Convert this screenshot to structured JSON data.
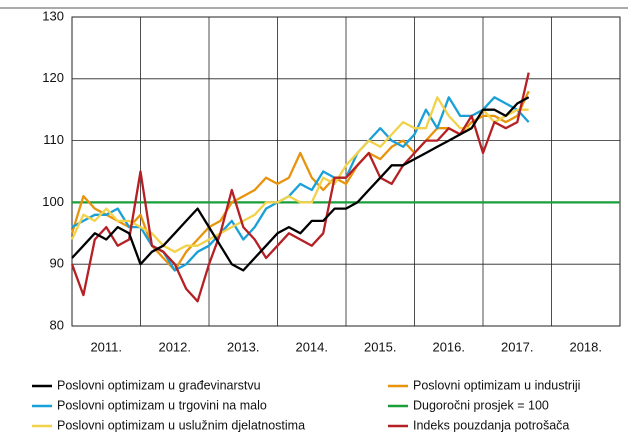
{
  "chart_data": {
    "type": "line",
    "xlim": [
      2011,
      2019
    ],
    "xticks": [
      {
        "value": 2011,
        "label": "2011."
      },
      {
        "value": 2012,
        "label": "2012."
      },
      {
        "value": 2013,
        "label": "2013."
      },
      {
        "value": 2014,
        "label": "2014."
      },
      {
        "value": 2015,
        "label": "2015."
      },
      {
        "value": 2016,
        "label": "2016."
      },
      {
        "value": 2017,
        "label": "2017."
      },
      {
        "value": 2018,
        "label": "2018."
      }
    ],
    "ylim": [
      80,
      130
    ],
    "yticks": [
      80,
      90,
      100,
      110,
      120,
      130
    ],
    "grid": true,
    "x": [
      2011.0,
      2011.167,
      2011.333,
      2011.5,
      2011.667,
      2011.833,
      2012.0,
      2012.167,
      2012.333,
      2012.5,
      2012.667,
      2012.833,
      2013.0,
      2013.167,
      2013.333,
      2013.5,
      2013.667,
      2013.833,
      2014.0,
      2014.167,
      2014.333,
      2014.5,
      2014.667,
      2014.833,
      2015.0,
      2015.167,
      2015.333,
      2015.5,
      2015.667,
      2015.833,
      2016.0,
      2016.167,
      2016.333,
      2016.5,
      2016.667,
      2016.833,
      2017.0,
      2017.167,
      2017.333,
      2017.5,
      2017.667
    ],
    "series": [
      {
        "name": "Poslovni optimizam u građevinarstvu",
        "color": "#000000",
        "values": [
          91,
          93,
          95,
          94,
          96,
          95,
          90,
          92,
          93,
          95,
          97,
          99,
          96,
          93,
          90,
          89,
          91,
          93,
          95,
          96,
          95,
          97,
          97,
          99,
          99,
          100,
          102,
          104,
          106,
          106,
          107,
          108,
          109,
          110,
          111,
          112,
          115,
          115,
          114,
          116,
          117
        ]
      },
      {
        "name": "Poslovni optimizam u industriji",
        "color": "#e8930c",
        "values": [
          95,
          101,
          99,
          98,
          97,
          96,
          98,
          93,
          91,
          89,
          92,
          94,
          96,
          97,
          100,
          101,
          102,
          104,
          103,
          104,
          108,
          104,
          102,
          104,
          103,
          106,
          108,
          107,
          109,
          110,
          108,
          110,
          112,
          112,
          111,
          113,
          114,
          114,
          113,
          114,
          118
        ]
      },
      {
        "name": "Poslovni optimizam u trgovini na malo",
        "color": "#1aa0d8",
        "values": [
          96,
          97,
          98,
          98,
          99,
          96,
          96,
          93,
          92,
          89,
          90,
          92,
          93,
          95,
          97,
          94,
          96,
          99,
          100,
          101,
          103,
          102,
          105,
          104,
          104,
          108,
          110,
          112,
          110,
          109,
          111,
          115,
          112,
          117,
          114,
          114,
          115,
          117,
          116,
          115,
          113
        ]
      },
      {
        "name": "Dugoročni prosjek = 100",
        "color": "#1a9e3a",
        "x": [
          2011,
          2019
        ],
        "values": [
          100,
          100
        ]
      },
      {
        "name": "Poslovni optimizam u uslužnim djelatnostima",
        "color": "#f2d24a",
        "values": [
          94,
          98,
          97,
          99,
          97,
          97,
          96,
          95,
          93,
          92,
          93,
          93,
          94,
          95,
          96,
          97,
          98,
          100,
          100,
          101,
          100,
          100,
          104,
          103,
          106,
          108,
          110,
          109,
          111,
          113,
          112,
          112,
          117,
          114,
          112,
          112,
          115,
          113,
          114,
          115,
          115
        ]
      },
      {
        "name": "Indeks pouzdanja potrošača",
        "color": "#b52025",
        "values": [
          90,
          85,
          94,
          96,
          93,
          94,
          105,
          93,
          92,
          90,
          86,
          84,
          90,
          95,
          102,
          96,
          94,
          91,
          93,
          95,
          94,
          93,
          95,
          104,
          104,
          106,
          108,
          104,
          103,
          106,
          108,
          110,
          110,
          112,
          111,
          114,
          108,
          113,
          112,
          113,
          121
        ]
      }
    ],
    "legend": "bottom"
  }
}
